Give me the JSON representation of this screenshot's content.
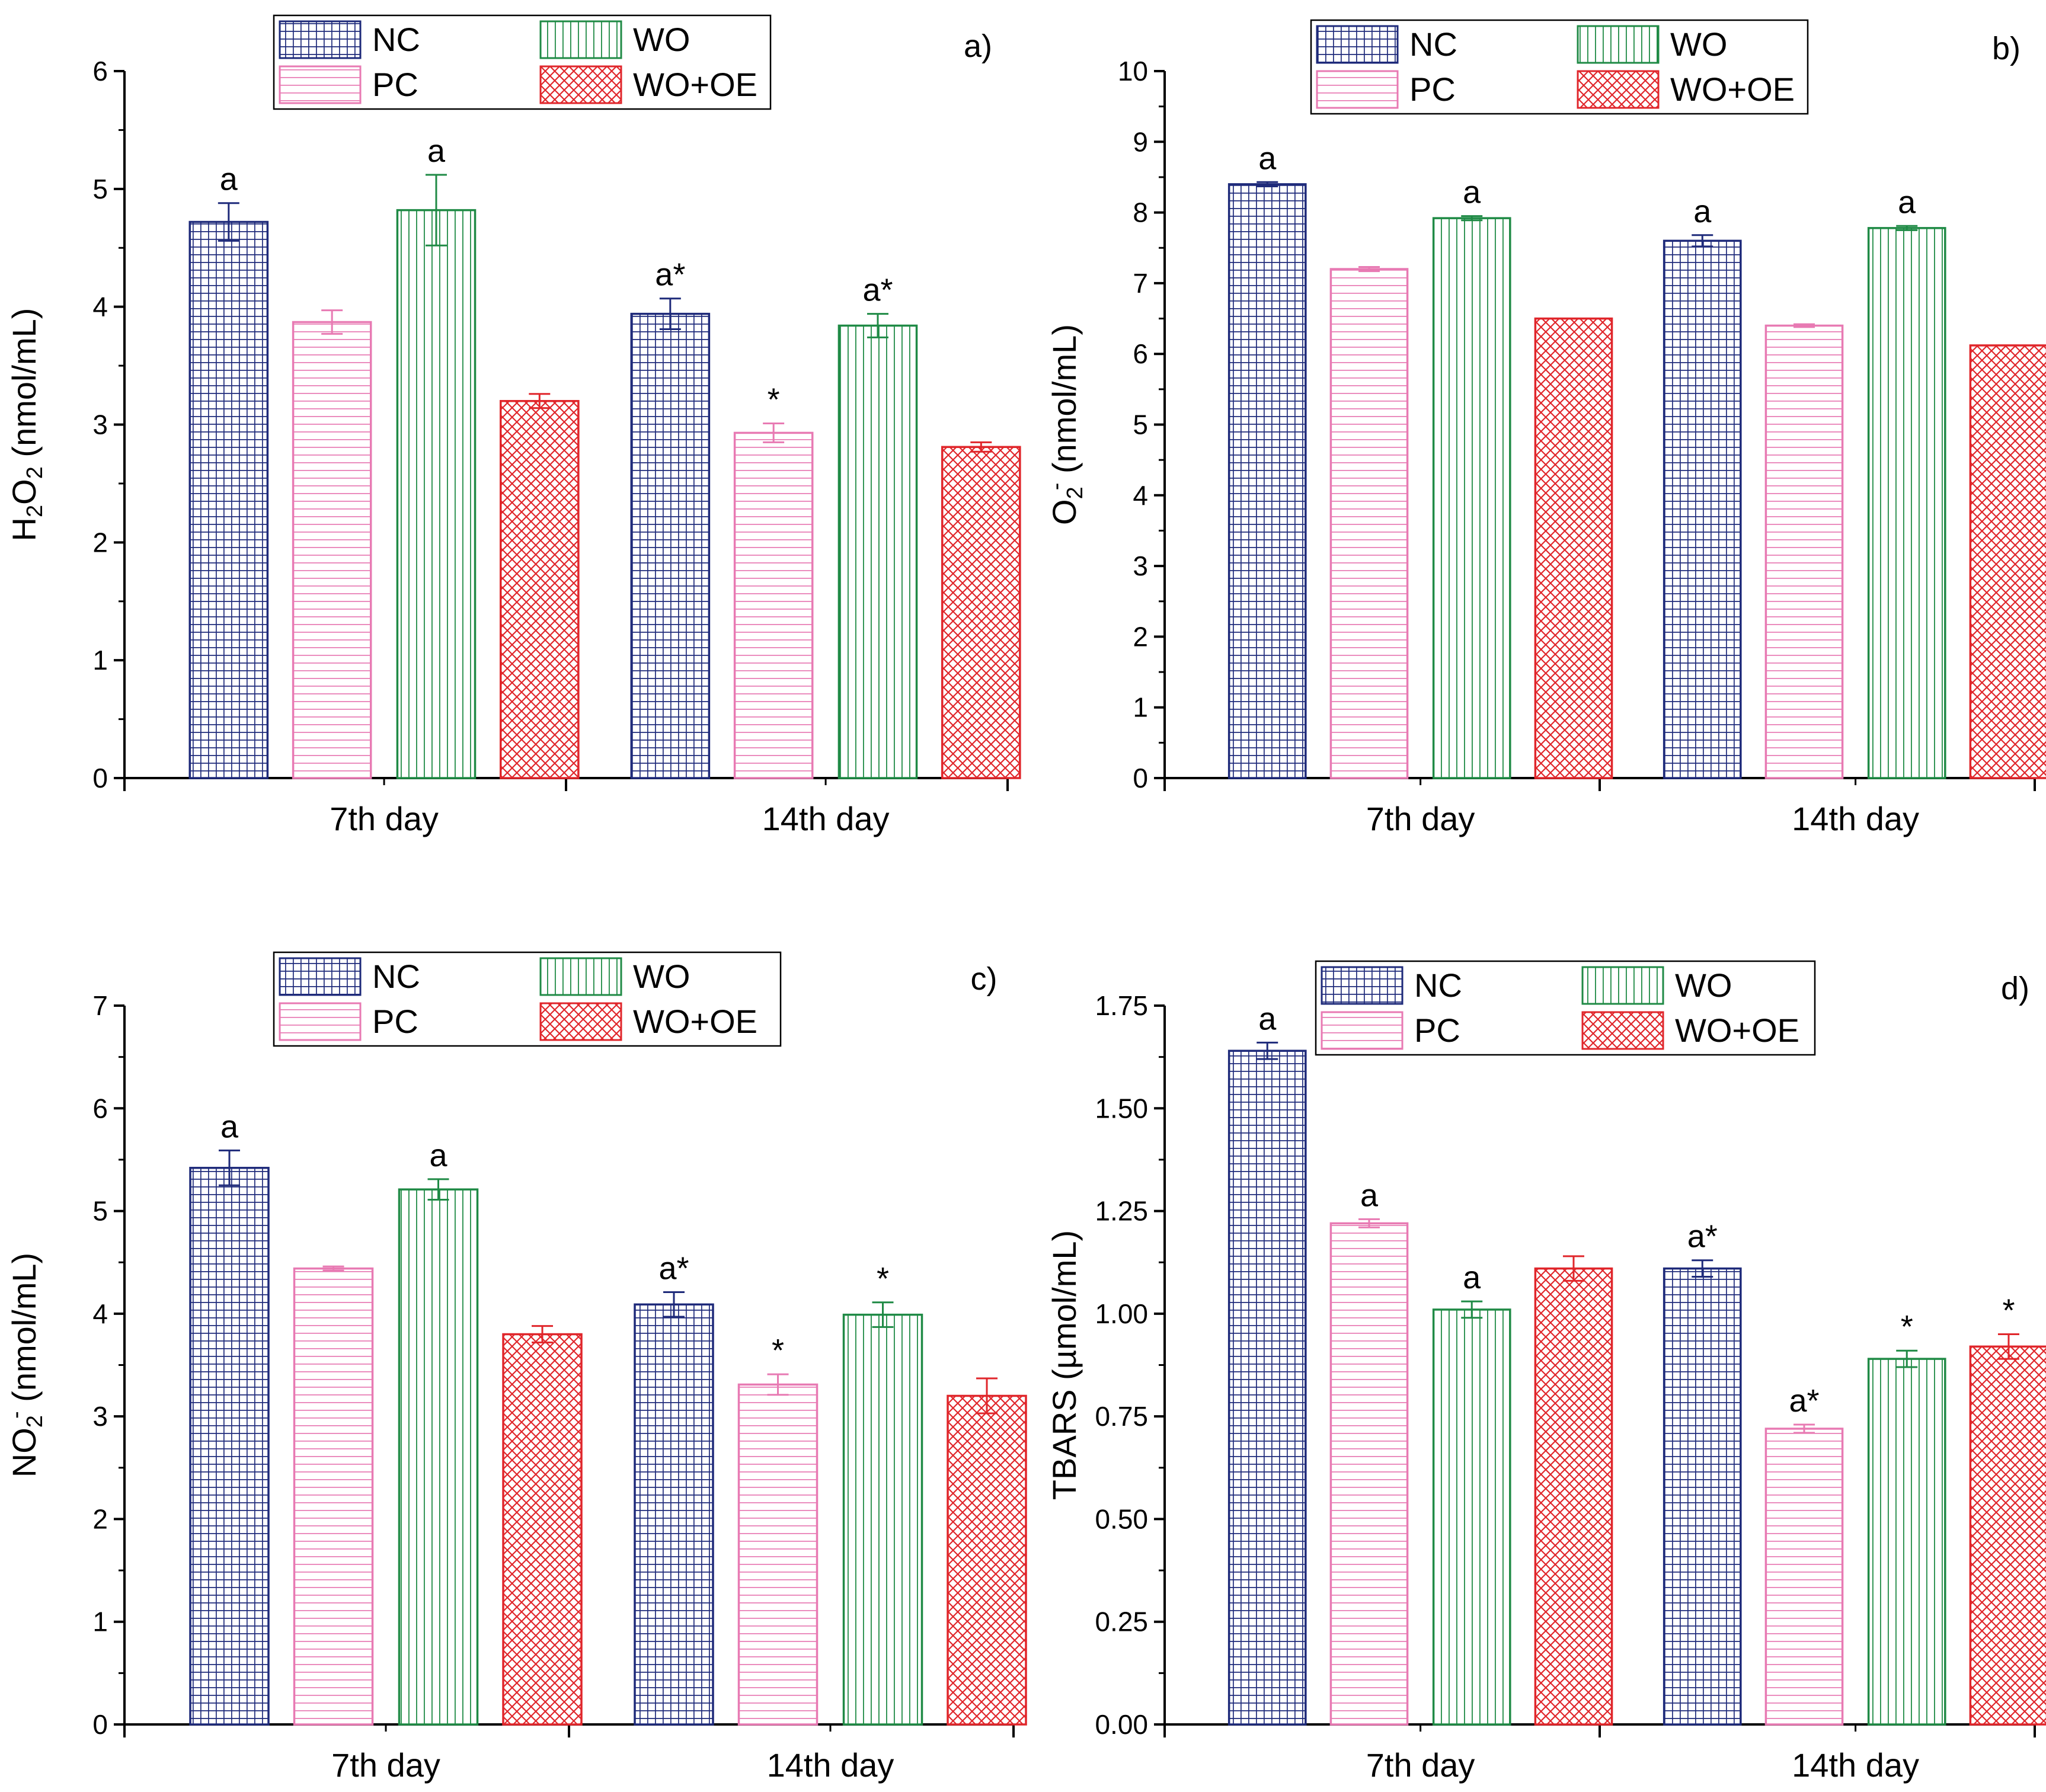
{
  "legend_entries": [
    "NC",
    "PC",
    "WO",
    "WO+OE"
  ],
  "series_colors": {
    "NC": "#1e2a7a",
    "PC": "#e87ab3",
    "WO": "#1f8a45",
    "WO+OE": "#e0262b"
  },
  "series_patterns": {
    "NC": "grid",
    "PC": "horizontal-lines",
    "WO": "vertical-lines",
    "WO+OE": "crosshatch"
  },
  "chart_data": [
    {
      "type": "bar",
      "panel_label": "a)",
      "ylabel": {
        "main": "H",
        "sub1": "2",
        "mid": "O",
        "sub2": "2",
        "tail": " (nmol/mL)"
      },
      "ylim": [
        0,
        6
      ],
      "yticks": [
        "0",
        "1",
        "2",
        "3",
        "4",
        "5",
        "6"
      ],
      "categories": [
        "7th day",
        "14th day"
      ],
      "series": [
        {
          "name": "NC",
          "values": [
            4.72,
            3.94
          ],
          "errors": [
            0.16,
            0.13
          ],
          "annotations": [
            "a",
            "a*"
          ]
        },
        {
          "name": "PC",
          "values": [
            3.87,
            2.93
          ],
          "errors": [
            0.1,
            0.08
          ],
          "annotations": [
            "",
            "*"
          ]
        },
        {
          "name": "WO",
          "values": [
            4.82,
            3.84
          ],
          "errors": [
            0.3,
            0.1
          ],
          "annotations": [
            "a",
            "a*"
          ]
        },
        {
          "name": "WO+OE",
          "values": [
            3.2,
            2.81
          ],
          "errors": [
            0.06,
            0.04
          ],
          "annotations": [
            "",
            ""
          ]
        }
      ]
    },
    {
      "type": "bar",
      "panel_label": "b)",
      "ylabel": {
        "main": "O",
        "sub1": "2",
        "sup": "-",
        "tail": " (nmol/mL)"
      },
      "ylim": [
        0,
        10
      ],
      "yticks": [
        "0",
        "1",
        "2",
        "3",
        "4",
        "5",
        "6",
        "7",
        "8",
        "9",
        "10"
      ],
      "categories": [
        "7th day",
        "14th day"
      ],
      "series": [
        {
          "name": "NC",
          "values": [
            8.4,
            7.6
          ],
          "errors": [
            0.03,
            0.08
          ],
          "annotations": [
            "a",
            "a"
          ]
        },
        {
          "name": "PC",
          "values": [
            7.2,
            6.4
          ],
          "errors": [
            0.03,
            0.02
          ],
          "annotations": [
            "",
            ""
          ]
        },
        {
          "name": "WO",
          "values": [
            7.92,
            7.78
          ],
          "errors": [
            0.03,
            0.03
          ],
          "annotations": [
            "a",
            "a"
          ]
        },
        {
          "name": "WO+OE",
          "values": [
            6.5,
            6.12
          ],
          "errors": [
            0.0,
            0.0
          ],
          "annotations": [
            "",
            ""
          ]
        }
      ]
    },
    {
      "type": "bar",
      "panel_label": "c)",
      "ylabel": {
        "main": "NO",
        "sub1": "2",
        "sup": "-",
        "tail": " (nmol/mL)"
      },
      "ylim": [
        0,
        7
      ],
      "yticks": [
        "0",
        "1",
        "2",
        "3",
        "4",
        "5",
        "6",
        "7"
      ],
      "categories": [
        "7th day",
        "14th day"
      ],
      "series": [
        {
          "name": "NC",
          "values": [
            5.42,
            4.09
          ],
          "errors": [
            0.17,
            0.12
          ],
          "annotations": [
            "a",
            "a*"
          ]
        },
        {
          "name": "PC",
          "values": [
            4.44,
            3.31
          ],
          "errors": [
            0.02,
            0.1
          ],
          "annotations": [
            "",
            "*"
          ]
        },
        {
          "name": "WO",
          "values": [
            5.21,
            3.99
          ],
          "errors": [
            0.1,
            0.12
          ],
          "annotations": [
            "a",
            "*"
          ]
        },
        {
          "name": "WO+OE",
          "values": [
            3.8,
            3.2
          ],
          "errors": [
            0.08,
            0.17
          ],
          "annotations": [
            "",
            ""
          ]
        }
      ]
    },
    {
      "type": "bar",
      "panel_label": "d)",
      "ylabel": {
        "main": "TBARS (µmol/mL)"
      },
      "ylim": [
        0,
        1.75
      ],
      "yticks": [
        "0.00",
        "0.25",
        "0.50",
        "0.75",
        "1.00",
        "1.25",
        "1.50",
        "1.75"
      ],
      "categories": [
        "7th day",
        "14th day"
      ],
      "series": [
        {
          "name": "NC",
          "values": [
            1.64,
            1.11
          ],
          "errors": [
            0.02,
            0.02
          ],
          "annotations": [
            "a",
            "a*"
          ]
        },
        {
          "name": "PC",
          "values": [
            1.22,
            0.72
          ],
          "errors": [
            0.01,
            0.01
          ],
          "annotations": [
            "a",
            "a*"
          ]
        },
        {
          "name": "WO",
          "values": [
            1.01,
            0.89
          ],
          "errors": [
            0.02,
            0.02
          ],
          "annotations": [
            "a",
            "*"
          ]
        },
        {
          "name": "WO+OE",
          "values": [
            1.11,
            0.92
          ],
          "errors": [
            0.03,
            0.03
          ],
          "annotations": [
            "",
            "*"
          ]
        }
      ]
    }
  ]
}
